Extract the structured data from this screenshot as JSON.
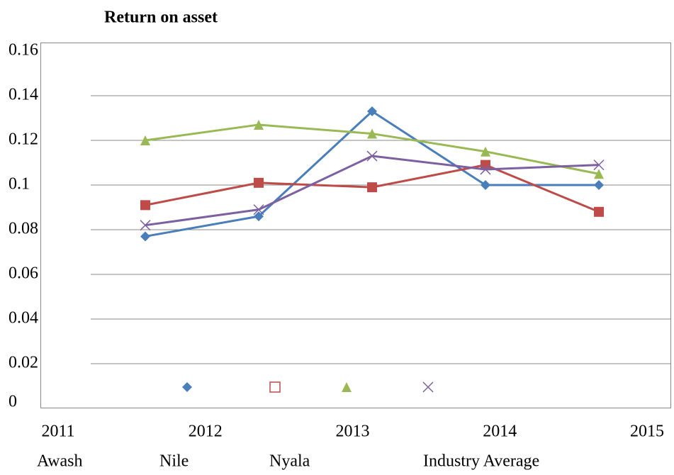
{
  "chart_data": {
    "type": "line",
    "title": "Return on asset",
    "categories": [
      "2011",
      "2012",
      "2013",
      "2014",
      "2015"
    ],
    "series": [
      {
        "name": "Awash",
        "color": "#4a7ebb",
        "marker": "diamond",
        "values": [
          0.077,
          0.086,
          0.133,
          0.1,
          0.1
        ]
      },
      {
        "name": "Nile",
        "color": "#be4b48",
        "marker": "square",
        "values": [
          0.091,
          0.101,
          0.099,
          0.109,
          0.088
        ]
      },
      {
        "name": "Nyala",
        "color": "#98b954",
        "marker": "triangle",
        "values": [
          0.12,
          0.127,
          0.123,
          0.115,
          0.105
        ]
      },
      {
        "name": "Industry Average",
        "color": "#7d60a0",
        "marker": "x",
        "values": [
          0.082,
          0.089,
          0.113,
          0.107,
          0.109
        ]
      }
    ],
    "ylim": [
      0,
      0.16
    ],
    "yticks": [
      0,
      0.02,
      0.04,
      0.06,
      0.08,
      0.1,
      0.12,
      0.14,
      0.16
    ],
    "grid": true
  }
}
